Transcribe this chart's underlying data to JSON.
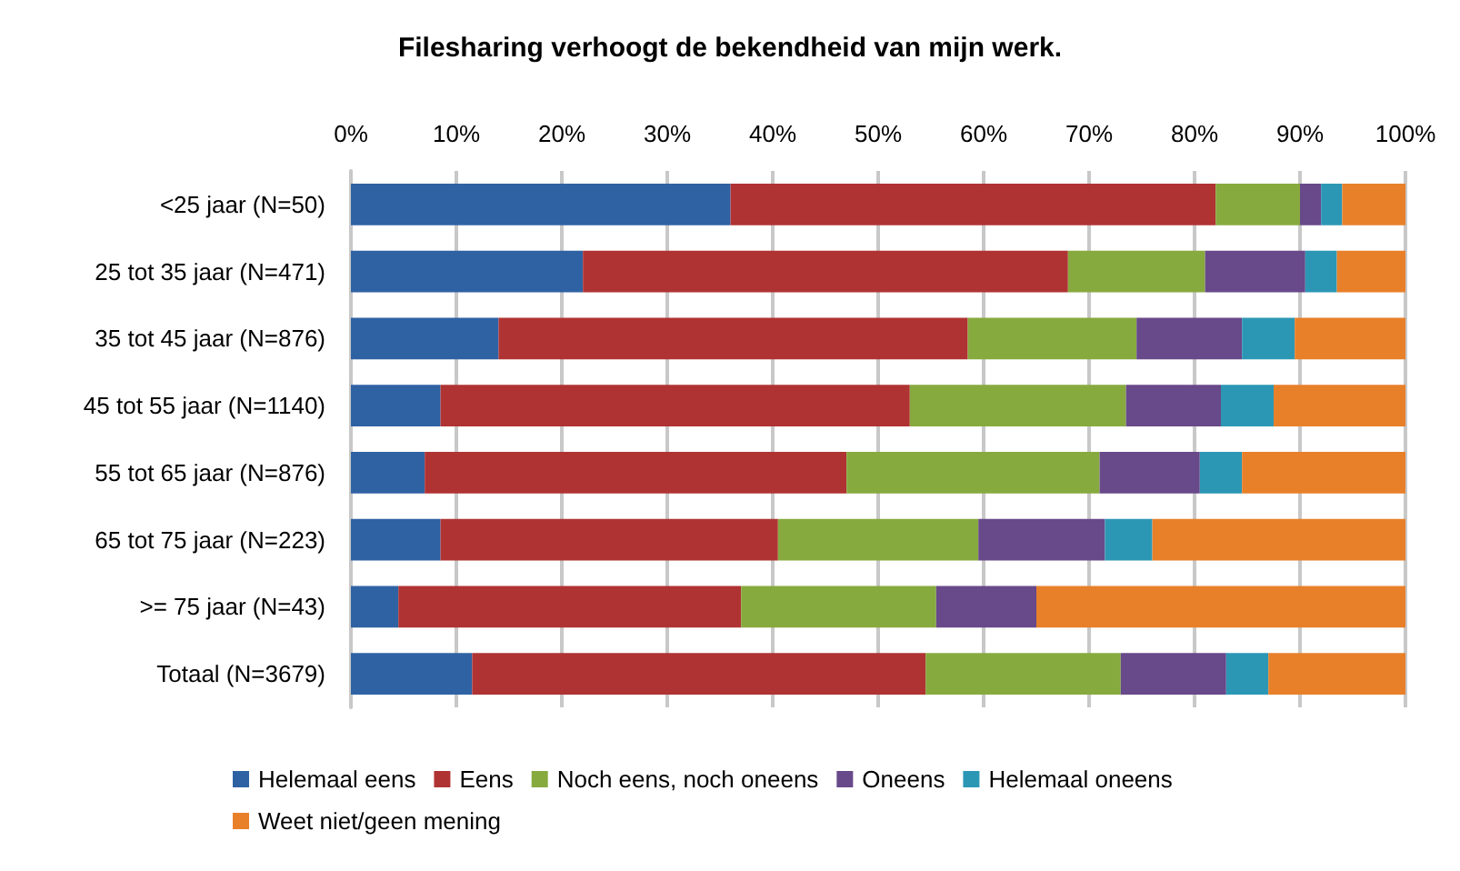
{
  "chart_data": {
    "type": "bar",
    "orientation": "horizontal",
    "stacked": true,
    "title": "Filesharing verhoogt de bekendheid van mijn werk.",
    "categories": [
      "<25 jaar (N=50)",
      "25 tot 35 jaar (N=471)",
      "35 tot 45 jaar (N=876)",
      "45 tot 55 jaar (N=1140)",
      "55 tot 65 jaar (N=876)",
      "65 tot 75 jaar (N=223)",
      ">= 75 jaar (N=43)",
      "Totaal (N=3679)"
    ],
    "series": [
      {
        "name": "Helemaal eens",
        "color": "#2f62a3",
        "values": [
          36,
          22,
          14,
          8.5,
          7,
          8.5,
          4.5,
          11.5
        ]
      },
      {
        "name": "Eens",
        "color": "#b03333",
        "values": [
          46,
          46,
          44.5,
          44.5,
          40,
          32,
          32.5,
          43
        ]
      },
      {
        "name": "Noch eens, noch oneens",
        "color": "#87aa3f",
        "values": [
          8,
          13,
          16,
          20.5,
          24,
          19,
          18.5,
          18.5
        ]
      },
      {
        "name": "Oneens",
        "color": "#68498a",
        "values": [
          2,
          9.5,
          10,
          9,
          9.5,
          12,
          9.5,
          10
        ]
      },
      {
        "name": "Helemaal oneens",
        "color": "#2c97b5",
        "values": [
          2,
          3,
          5,
          5,
          4,
          4.5,
          0,
          4
        ]
      },
      {
        "name": "Weet niet/geen mening",
        "color": "#e8802a",
        "values": [
          6,
          6.5,
          10.5,
          12.5,
          15.5,
          24,
          35,
          13
        ]
      }
    ],
    "xlim": [
      0,
      100
    ],
    "xticks": [
      {
        "value": 0,
        "label": "0%"
      },
      {
        "value": 10,
        "label": "10%"
      },
      {
        "value": 20,
        "label": "20%"
      },
      {
        "value": 30,
        "label": "30%"
      },
      {
        "value": 40,
        "label": "40%"
      },
      {
        "value": 50,
        "label": "50%"
      },
      {
        "value": 60,
        "label": "60%"
      },
      {
        "value": 70,
        "label": "70%"
      },
      {
        "value": 80,
        "label": "80%"
      },
      {
        "value": 90,
        "label": "90%"
      },
      {
        "value": 100,
        "label": "100%"
      }
    ],
    "grid": "x",
    "legend": "bottom"
  }
}
